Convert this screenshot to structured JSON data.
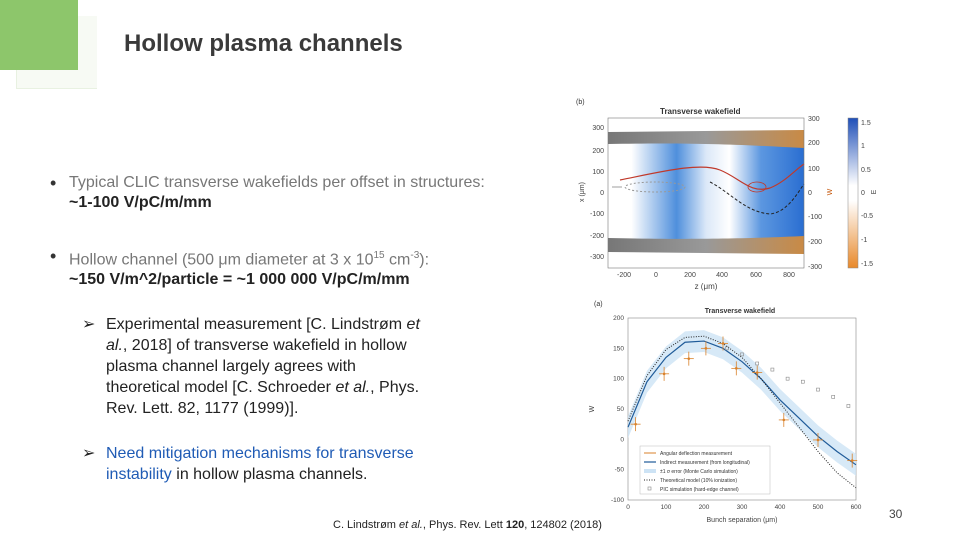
{
  "slide": {
    "title": "Hollow plasma channels",
    "bullets": [
      {
        "line1": "Typical CLIC transverse wakefields per offset in structures:",
        "line2": "~1-100 V/pC/m/mm"
      },
      {
        "line1": "Hollow channel (500 μm diameter at 3 x 10",
        "sup": "15",
        "line1_end": " cm",
        "sup2": "-3",
        "line1_tail": "):",
        "line2": "~150 V/m^2/particle =  ~1 000 000 V/pC/m/mm"
      }
    ],
    "point1": {
      "a": "Experimental measurement [C. Lindstrøm ",
      "a_it": "et",
      "b_it": "al.",
      "b": ", 2018] of transverse wakefield in hollow",
      "c": "plasma channel largely agrees with",
      "d": "theoretical model [C. Schroeder ",
      "d_it": "et al.",
      "d_end": ", Phys.",
      "e": "Rev. Lett. 82, 1177 (1999)]."
    },
    "point2": {
      "a": "Need mitigation mechanisms for transverse",
      "b_blue": "instability",
      "b": " in hollow plasma channels."
    },
    "citation": {
      "a": "C. Lindstrøm ",
      "a_it": "et al.",
      "b": ", Phys. Rev. Lett ",
      "vol": "120",
      "c": ", 124802 (2018)"
    },
    "page_number": "30"
  },
  "figure_top": {
    "panel_label": "(b)",
    "title": "Transverse wakefield",
    "y_ticks_left": [
      "300",
      "200",
      "100",
      "0",
      "-100",
      "-200",
      "-300"
    ],
    "y_ticks_right": [
      "300",
      "200",
      "100",
      "0",
      "-100",
      "-200",
      "-300"
    ],
    "x_ticks": [
      "-200",
      "0",
      "200",
      "400",
      "600",
      "800"
    ],
    "x_label": "z (μm)",
    "y_label": "x (μm)",
    "y_label_right": "W",
    "cbar_ticks": [
      "1.5",
      "1",
      "0.5",
      "0",
      "-0.5",
      "-1",
      "-1.5"
    ],
    "cbar_label": "E",
    "colors": {
      "positive": "#2f6fd0",
      "negative": "#e8892b",
      "line": "#c0392b"
    }
  },
  "chart_data": {
    "type": "scatter",
    "panel_label": "(a)",
    "title": "Transverse wakefield",
    "xlabel": "Bunch separation (μm)",
    "ylabel": "W",
    "xlim": [
      0,
      600
    ],
    "ylim": [
      -100,
      200
    ],
    "x_ticks": [
      "0",
      "100",
      "200",
      "300",
      "400",
      "500",
      "600"
    ],
    "y_ticks": [
      "200",
      "150",
      "100",
      "50",
      "0",
      "-50",
      "-100"
    ],
    "legend": [
      "Angular deflection measurement",
      "Indirect measurement (from longitudinal)",
      "±1 σ error (Monte Carlo simulation)",
      "Theoretical model (10% ionization)",
      "PIC simulation (hard-edge channel)"
    ],
    "series": [
      {
        "name": "Angular deflection measurement",
        "x": [
          20,
          95,
          160,
          205,
          250,
          285,
          340,
          410,
          500,
          590
        ],
        "y": [
          25,
          108,
          133,
          150,
          158,
          117,
          110,
          32,
          -1,
          -35
        ]
      },
      {
        "name": "Indirect measurement (from longitudinal)",
        "x": [
          0,
          50,
          100,
          150,
          200,
          250,
          300,
          350,
          400,
          450,
          500,
          550,
          600
        ],
        "y": [
          20,
          95,
          135,
          160,
          162,
          150,
          128,
          100,
          65,
          35,
          5,
          -20,
          -42
        ]
      },
      {
        "name": "Theoretical model (10% ionization)",
        "x": [
          0,
          50,
          100,
          150,
          200,
          250,
          300,
          350,
          400,
          450,
          500,
          550,
          600
        ],
        "y": [
          30,
          105,
          148,
          168,
          170,
          158,
          135,
          100,
          60,
          20,
          -20,
          -55,
          -80
        ]
      },
      {
        "name": "PIC simulation (hard-edge channel)",
        "x": [
          260,
          300,
          340,
          380,
          420,
          460,
          500,
          540,
          580
        ],
        "y": [
          150,
          140,
          125,
          115,
          100,
          95,
          82,
          70,
          55
        ]
      }
    ]
  }
}
